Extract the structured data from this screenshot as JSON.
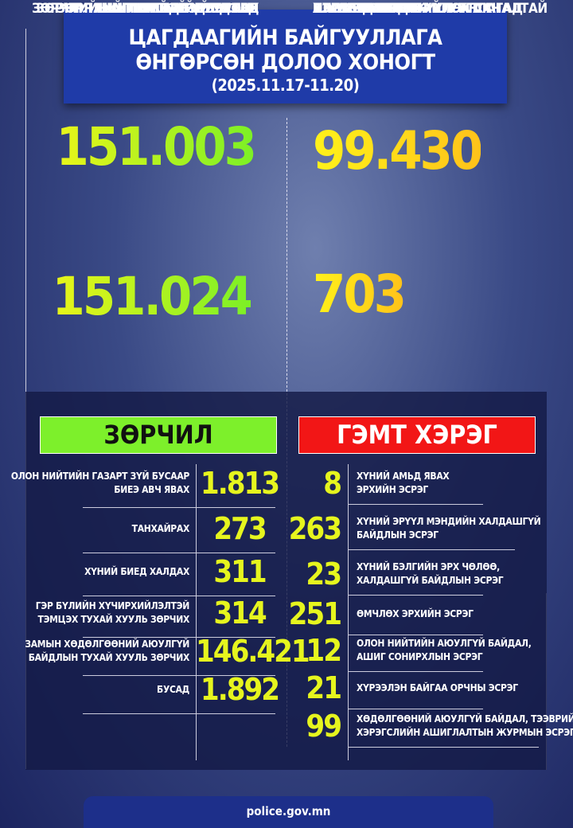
{
  "header": {
    "title_line1": "ЦАГДААГИЙН БАЙГУУЛЛАГА",
    "title_line2": "ӨНГӨРСӨН ДОЛОО ХОНОГТ",
    "dates": "(2025.11.17-11.20)"
  },
  "stats": [
    {
      "value": "151.003",
      "label": [
        "ЗӨРЧЛИЙН ШИНЖТЭЙ ҮЙЛДЭЛД",
        "ЗӨРЧИЛ ШАЛГАН ШИЙДВЭРЛЭХ",
        "АЖИЛЛАГАА ЯВУУЛСАН"
      ]
    },
    {
      "value": "99.430",
      "label": [
        "ХЭРЭГТ МӨРДӨН ШАЛГАХ",
        "АЖИЛЛАГАА ЯВУУЛСАН"
      ]
    },
    {
      "value": "151.024",
      "label": [
        "ЗӨРЧЛИЙГ ШИЙДВЭРЛЭСЭН"
      ]
    },
    {
      "value": "703",
      "label": [
        "ШҮҮХЭД ШИЛЖҮҮЛЭХ САНАЛТАЙ",
        "ПРОКУРОРЫН БАЙГУУЛЛАГАД",
        "ШИЛЖҮҮЛСЭН"
      ]
    }
  ],
  "violations": {
    "title": "ЗӨРЧИЛ",
    "rows": [
      {
        "label": [
          "ОЛОН НИЙТИЙН ГАЗАРТ ЗҮЙ БУСААР",
          "БИЕЭ АВЧ ЯВАХ"
        ],
        "value": "1.813"
      },
      {
        "label": [
          "ТАНХАЙРАХ"
        ],
        "value": "273"
      },
      {
        "label": [
          "ХҮНИЙ БИЕД ХАЛДАХ"
        ],
        "value": "311"
      },
      {
        "label": [
          "ГЭР БҮЛИЙН ХҮЧИРХИЙЛЭЛТЭЙ",
          "ТЭМЦЭХ ТУХАЙ ХУУЛЬ ЗӨРЧИХ"
        ],
        "value": "314"
      },
      {
        "label": [
          "ЗАМЫН ХӨДӨЛГӨӨНИЙ АЮУЛГҮЙ",
          "БАЙДЛЫН ТУХАЙ ХУУЛЬ  ЗӨРЧИХ"
        ],
        "value": "146.421"
      },
      {
        "label": [
          "БУСАД"
        ],
        "value": "1.892"
      }
    ]
  },
  "crimes": {
    "title": "ГЭМТ ХЭРЭГ",
    "rows": [
      {
        "label": [
          "ХҮНИЙ АМЬД ЯВАХ",
          "ЭРХИЙН ЭСРЭГ"
        ],
        "value": "8"
      },
      {
        "label": [
          "ХҮНИЙ ЭРҮҮЛ МЭНДИЙН ХАЛДАШГҮЙ",
          "БАЙДЛЫН ЭСРЭГ"
        ],
        "value": "263"
      },
      {
        "label": [
          "ХҮНИЙ БЭЛГИЙН ЭРХ ЧӨЛӨӨ,",
          "ХАЛДАШГҮЙ БАЙДЛЫН ЭСРЭГ"
        ],
        "value": "23"
      },
      {
        "label": [
          "ӨМЧЛӨХ ЭРХИЙН ЭСРЭГ"
        ],
        "value": "251"
      },
      {
        "label": [
          "ОЛОН НИЙТИЙН АЮУЛГҮЙ БАЙДАЛ,",
          "АШИГ СОНИРХЛЫН ЭСРЭГ"
        ],
        "value": "12"
      },
      {
        "label": [
          "ХҮРЭЭЛЭН БАЙГАА ОРЧНЫ ЭСРЭГ"
        ],
        "value": "21"
      },
      {
        "label": [
          "ХӨДӨЛГӨӨНИЙ АЮУЛГҮЙ БАЙДАЛ, ТЭЭВРИЙН",
          "ХЭРЭГСЛИЙН АШИГЛАЛТЫН ЖУРМЫН ЭСРЭГ"
        ],
        "value": "99"
      }
    ]
  },
  "footer": {
    "url": "police.gov.mn"
  }
}
